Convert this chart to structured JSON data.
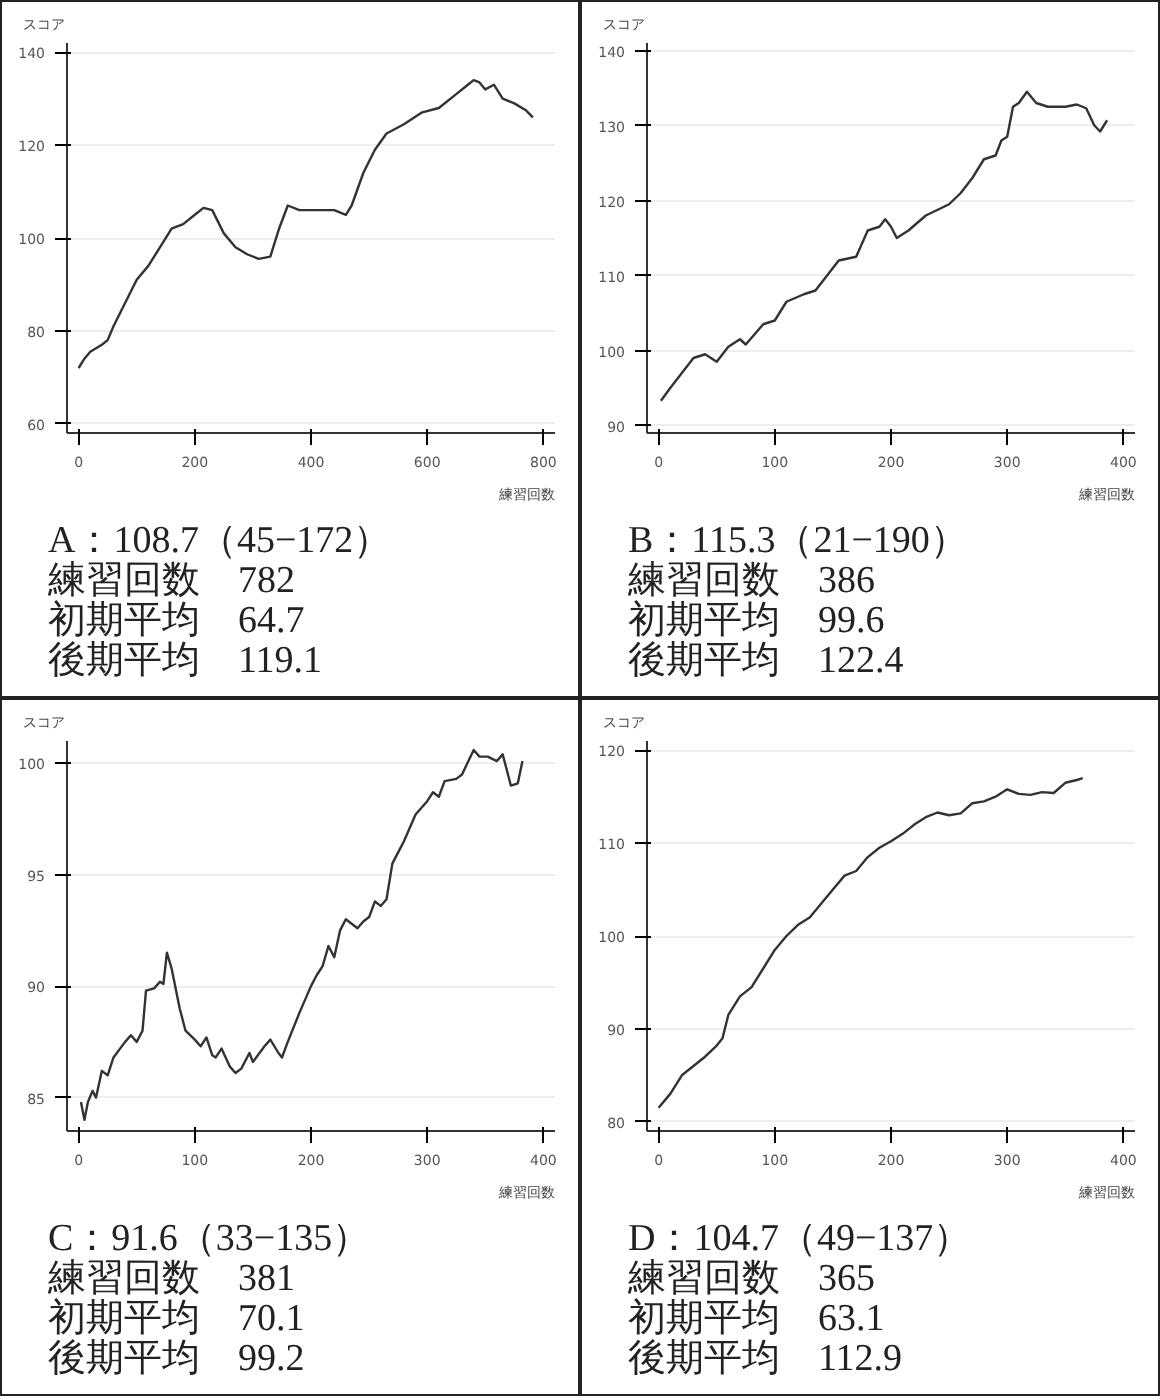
{
  "chart_data": [
    {
      "type": "line",
      "xlabel": "練習回数",
      "ylabel": "スコア",
      "grid": "y",
      "color": "#333333",
      "xlim": [
        -20,
        820
      ],
      "ylim": [
        58,
        142
      ],
      "xticks": [
        0,
        200,
        400,
        600,
        800
      ],
      "yticks": [
        60,
        80,
        100,
        120,
        140
      ],
      "x": [
        0,
        10,
        20,
        40,
        50,
        60,
        80,
        100,
        120,
        140,
        160,
        180,
        200,
        215,
        230,
        250,
        270,
        290,
        310,
        330,
        345,
        360,
        380,
        400,
        420,
        440,
        460,
        470,
        490,
        510,
        530,
        560,
        590,
        620,
        650,
        670,
        680,
        690,
        700,
        715,
        730,
        750,
        770,
        782
      ],
      "values": [
        72,
        74,
        75.5,
        77,
        78,
        81,
        86,
        91,
        94,
        98,
        102,
        103,
        105,
        106.5,
        106,
        101,
        98,
        96.5,
        95.5,
        96,
        102,
        107,
        106,
        106,
        106,
        106,
        105,
        107,
        114,
        119,
        122.5,
        124.5,
        127,
        128,
        131,
        133,
        134,
        133.5,
        132,
        133,
        130,
        129,
        127.5,
        126
      ],
      "annotations": [
        "A：108.7（45−172）",
        "練習回数　782",
        "初期平均　64.7",
        "後期平均　119.1"
      ]
    },
    {
      "type": "line",
      "xlabel": "練習回数",
      "ylabel": "スコア",
      "grid": "y",
      "color": "#333333",
      "xlim": [
        -10,
        410
      ],
      "ylim": [
        89,
        141
      ],
      "xticks": [
        0,
        100,
        200,
        300,
        400
      ],
      "yticks": [
        90,
        100,
        110,
        120,
        130,
        140
      ],
      "x": [
        2,
        10,
        20,
        30,
        40,
        50,
        60,
        70,
        75,
        90,
        100,
        110,
        125,
        135,
        145,
        155,
        170,
        180,
        190,
        195,
        200,
        205,
        215,
        230,
        250,
        260,
        270,
        280,
        290,
        295,
        300,
        305,
        310,
        317,
        325,
        335,
        350,
        360,
        368,
        375,
        380,
        386
      ],
      "values": [
        93.3,
        95,
        97,
        99,
        99.5,
        98.5,
        100.5,
        101.5,
        100.8,
        103.5,
        104,
        106.5,
        107.5,
        108,
        110,
        112,
        112.5,
        116,
        116.5,
        117.5,
        116.5,
        115,
        116,
        118,
        119.5,
        121,
        123,
        125.5,
        126,
        128,
        128.5,
        132.5,
        133,
        134.5,
        133,
        132.5,
        132.5,
        132.8,
        132.3,
        130,
        129.2,
        130.7
      ],
      "annotations": [
        "B：115.3（21−190）",
        "練習回数　386",
        "初期平均　99.6",
        "後期平均　122.4"
      ]
    },
    {
      "type": "line",
      "xlabel": "練習回数",
      "ylabel": "スコア",
      "grid": "y",
      "color": "#333333",
      "xlim": [
        -10,
        410
      ],
      "ylim": [
        83.5,
        101
      ],
      "xticks": [
        0,
        100,
        200,
        300,
        400
      ],
      "yticks": [
        85,
        90,
        95,
        100
      ],
      "x": [
        2,
        5,
        8,
        12,
        15,
        20,
        25,
        30,
        40,
        45,
        50,
        55,
        58,
        65,
        70,
        73,
        76,
        80,
        87,
        92,
        100,
        105,
        110,
        115,
        118,
        123,
        130,
        135,
        140,
        147,
        150,
        160,
        165,
        172,
        175,
        180,
        190,
        200,
        205,
        210,
        215,
        220,
        225,
        230,
        240,
        245,
        250,
        255,
        260,
        265,
        270,
        275,
        280,
        290,
        300,
        305,
        310,
        315,
        325,
        330,
        340,
        345,
        352,
        360,
        365,
        372,
        378,
        382
      ],
      "values": [
        84.8,
        84,
        84.8,
        85.3,
        85,
        86.2,
        86,
        86.8,
        87.5,
        87.8,
        87.5,
        88,
        89.8,
        89.9,
        90.2,
        90.1,
        91.5,
        90.8,
        89,
        88,
        87.6,
        87.3,
        87.7,
        86.9,
        86.8,
        87.2,
        86.4,
        86.1,
        86.3,
        87,
        86.6,
        87.3,
        87.6,
        87,
        86.8,
        87.5,
        88.8,
        90,
        90.5,
        90.9,
        91.8,
        91.3,
        92.5,
        93,
        92.6,
        92.9,
        93.1,
        93.8,
        93.6,
        93.9,
        95.5,
        96,
        96.5,
        97.7,
        98.3,
        98.7,
        98.5,
        99.2,
        99.3,
        99.5,
        100.6,
        100.3,
        100.3,
        100.1,
        100.4,
        99,
        99.1,
        100.1
      ],
      "annotations": [
        "C：91.6（33−135）",
        "練習回数　381",
        "初期平均　70.1",
        "後期平均　99.2"
      ]
    },
    {
      "type": "line",
      "xlabel": "練習回数",
      "ylabel": "スコア",
      "grid": "y",
      "color": "#333333",
      "xlim": [
        -10,
        410
      ],
      "ylim": [
        79,
        121
      ],
      "xticks": [
        0,
        100,
        200,
        300,
        400
      ],
      "yticks": [
        80,
        90,
        100,
        110,
        120
      ],
      "x": [
        0,
        10,
        20,
        30,
        40,
        50,
        55,
        60,
        70,
        80,
        90,
        100,
        110,
        120,
        130,
        140,
        150,
        160,
        170,
        180,
        190,
        200,
        210,
        220,
        230,
        240,
        250,
        260,
        270,
        280,
        290,
        300,
        310,
        320,
        330,
        340,
        350,
        360,
        365
      ],
      "values": [
        81.5,
        83,
        85,
        86,
        87,
        88.2,
        89,
        91.5,
        93.5,
        94.5,
        96.5,
        98.5,
        100,
        101.2,
        102,
        103.5,
        105,
        106.5,
        107,
        108.5,
        109.5,
        110.2,
        111,
        112,
        112.8,
        113.3,
        113,
        113.2,
        114.3,
        114.5,
        115,
        115.8,
        115.3,
        115.2,
        115.5,
        115.4,
        116.5,
        116.8,
        117
      ],
      "annotations": [
        "D：104.7（49−137）",
        "練習回数　365",
        "初期平均　63.1",
        "後期平均　112.9"
      ]
    }
  ]
}
